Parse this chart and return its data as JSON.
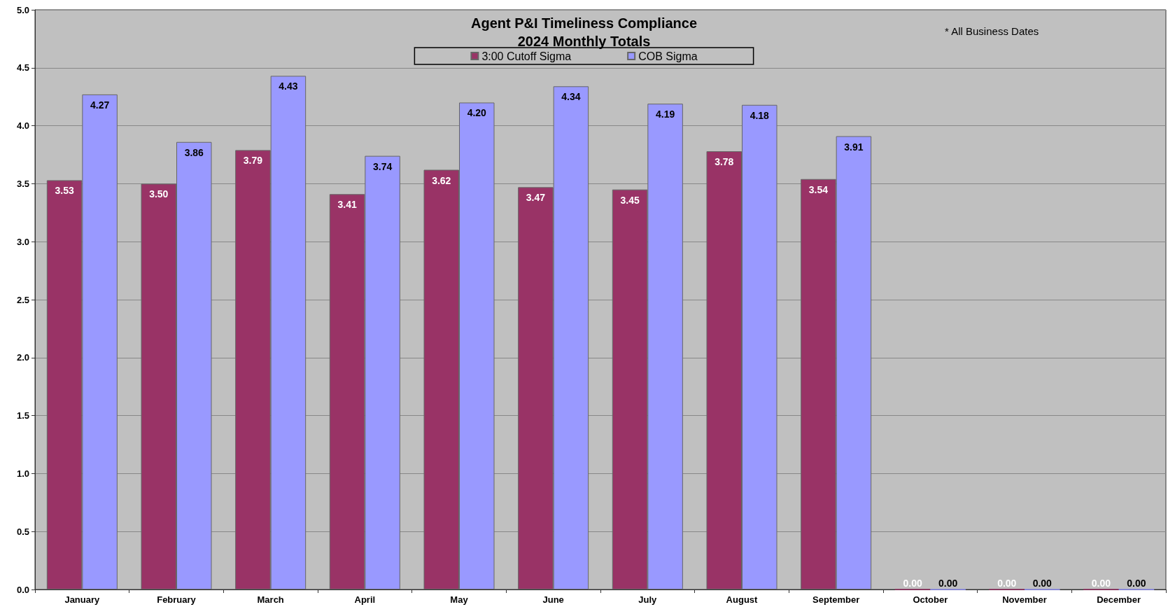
{
  "chart_data": {
    "type": "bar",
    "title": "Agent P&I Timeliness Compliance",
    "subtitle": "2024 Monthly Totals",
    "annotations": [
      "* All Business Dates"
    ],
    "categories": [
      "January",
      "February",
      "March",
      "April",
      "May",
      "June",
      "July",
      "August",
      "September",
      "October",
      "November",
      "December"
    ],
    "series": [
      {
        "name": "3:00 Cutoff Sigma",
        "color": "#993366",
        "values": [
          3.53,
          3.5,
          3.79,
          3.41,
          3.62,
          3.47,
          3.45,
          3.78,
          3.54,
          0,
          0,
          0
        ],
        "value_labels": [
          "3.53",
          "3.50",
          "3.79",
          "3.41",
          "3.62",
          "3.47",
          "3.45",
          "3.78",
          "3.54",
          "0.00",
          "0.00",
          "0.00"
        ]
      },
      {
        "name": "COB Sigma",
        "color": "#9999ff",
        "values": [
          4.27,
          3.86,
          4.43,
          3.74,
          4.2,
          4.34,
          4.19,
          4.18,
          3.91,
          0,
          0,
          0
        ],
        "value_labels": [
          "4.27",
          "3.86",
          "4.43",
          "3.74",
          "4.20",
          "4.34",
          "4.19",
          "4.18",
          "3.91",
          "0.00",
          "0.00",
          "0.00"
        ]
      }
    ],
    "ylim": [
      0,
      5
    ],
    "yticks": [
      {
        "value": 0,
        "label": "0.0"
      },
      {
        "value": 0.5,
        "label": "0.5"
      },
      {
        "value": 1,
        "label": "1.0"
      },
      {
        "value": 1.5,
        "label": "1.5"
      },
      {
        "value": 2,
        "label": "2.0"
      },
      {
        "value": 2.5,
        "label": "2.5"
      },
      {
        "value": 3,
        "label": "3.0"
      },
      {
        "value": 3.5,
        "label": "3.5"
      },
      {
        "value": 4,
        "label": "4.0"
      },
      {
        "value": 4.5,
        "label": "4.5"
      },
      {
        "value": 5,
        "label": "5.0"
      }
    ],
    "grid": "y",
    "legend": "top"
  }
}
